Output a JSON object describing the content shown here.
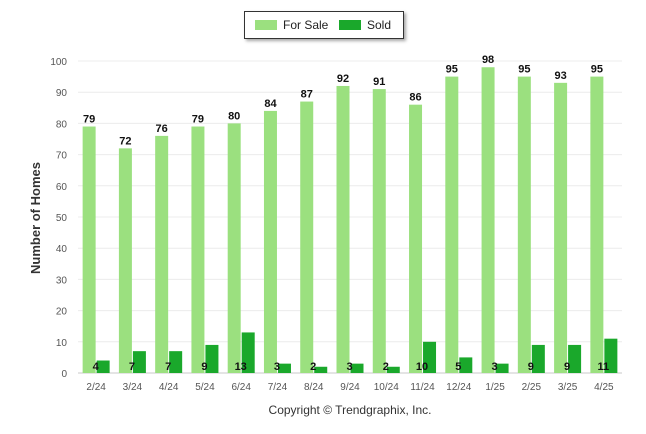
{
  "chart_data": {
    "type": "bar",
    "ylabel": "Number of Homes",
    "ylim": [
      0,
      100
    ],
    "yticks": [
      0,
      10,
      20,
      30,
      40,
      50,
      60,
      70,
      80,
      90,
      100
    ],
    "categories": [
      "2/24",
      "3/24",
      "4/24",
      "5/24",
      "6/24",
      "7/24",
      "8/24",
      "9/24",
      "10/24",
      "11/24",
      "12/24",
      "1/25",
      "2/25",
      "3/25",
      "4/25"
    ],
    "series": [
      {
        "name": "For Sale",
        "color": "#9be07f",
        "values": [
          79,
          72,
          76,
          79,
          80,
          84,
          87,
          92,
          91,
          86,
          95,
          98,
          95,
          93,
          95
        ]
      },
      {
        "name": "Sold",
        "color": "#1aa82b",
        "values": [
          4,
          7,
          7,
          9,
          13,
          3,
          2,
          3,
          2,
          10,
          5,
          3,
          9,
          9,
          11
        ]
      }
    ],
    "grid": true,
    "legend_position": "top-center"
  },
  "legend": {
    "items": [
      {
        "label": "For Sale",
        "color": "#9be07f"
      },
      {
        "label": "Sold",
        "color": "#1aa82b"
      }
    ]
  },
  "footer": {
    "copyright": "Copyright © Trendgraphix, Inc."
  }
}
